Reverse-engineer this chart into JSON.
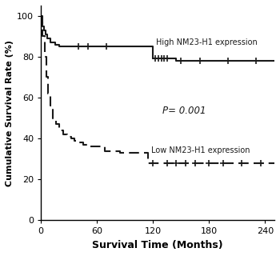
{
  "high_x": [
    0,
    1,
    2,
    3,
    5,
    7,
    10,
    15,
    20,
    25,
    30,
    40,
    50,
    60,
    65,
    70,
    80,
    90,
    100,
    110,
    115,
    120,
    125,
    130,
    135,
    140,
    145,
    150,
    160,
    170,
    180,
    190,
    200,
    210,
    220,
    230,
    240,
    250
  ],
  "high_y": [
    100,
    97,
    95,
    93,
    91,
    89,
    87,
    86,
    85,
    85,
    85,
    85,
    85,
    85,
    85,
    85,
    85,
    85,
    85,
    85,
    85,
    79,
    79,
    79,
    79,
    79,
    78,
    78,
    78,
    78,
    78,
    78,
    78,
    78,
    78,
    78,
    78,
    78
  ],
  "high_censors_x": [
    40,
    50,
    70,
    122,
    126,
    129,
    132,
    135,
    150,
    170,
    200,
    230
  ],
  "high_censors_y": [
    85,
    85,
    85,
    79,
    79,
    79,
    79,
    79,
    78,
    78,
    78,
    78
  ],
  "low_x": [
    0,
    2,
    4,
    6,
    8,
    10,
    13,
    16,
    20,
    24,
    28,
    32,
    36,
    40,
    45,
    50,
    55,
    60,
    68,
    75,
    85,
    95,
    105,
    110,
    115,
    120,
    125,
    130,
    140,
    150,
    160,
    170,
    180,
    190,
    200,
    210,
    220,
    230,
    240,
    250
  ],
  "low_y": [
    100,
    90,
    80,
    70,
    62,
    56,
    50,
    47,
    44,
    42,
    41,
    40,
    39,
    38,
    37,
    36,
    36,
    36,
    34,
    34,
    33,
    33,
    33,
    33,
    28,
    28,
    28,
    28,
    28,
    28,
    28,
    28,
    28,
    28,
    28,
    28,
    28,
    28,
    28,
    28
  ],
  "low_censors_x": [
    120,
    135,
    145,
    155,
    165,
    180,
    195,
    215,
    235
  ],
  "low_censors_y": [
    28,
    28,
    28,
    28,
    28,
    28,
    28,
    28,
    28
  ],
  "high_label": "High NM23-H1 expression",
  "low_label": "Low NM23-H1 expression",
  "p_text": "P= 0.001",
  "xlabel": "Survival Time (Months)",
  "ylabel": "Cumulative Survival Rate (%)",
  "xlim": [
    0,
    250
  ],
  "ylim": [
    0,
    105
  ],
  "xticks": [
    0,
    60,
    120,
    180,
    240
  ],
  "yticks": [
    0,
    20,
    40,
    60,
    80,
    100
  ],
  "line_color": "#1a1a1a",
  "background": "#ffffff",
  "figwidth": 3.5,
  "figheight": 3.2,
  "dpi": 100
}
